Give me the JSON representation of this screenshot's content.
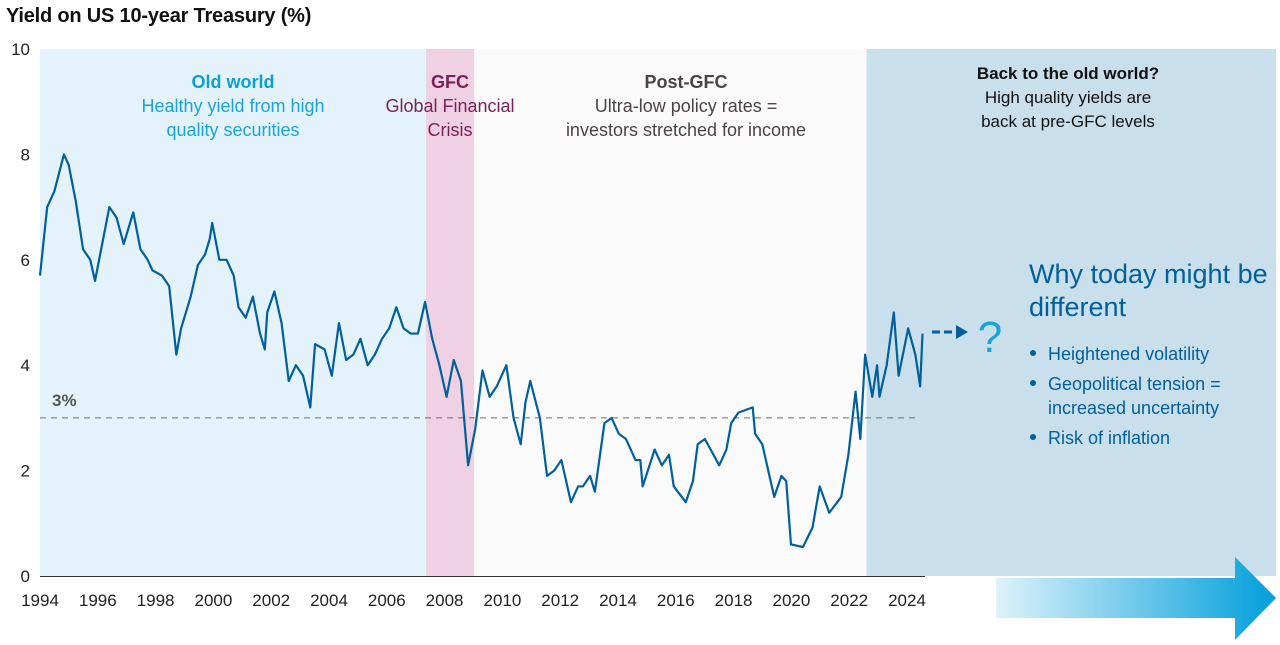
{
  "title": "Yield on US 10-year Treasury (%)",
  "regions": [
    {
      "name": "old-world",
      "start": 1994.0,
      "end": 2007.45,
      "color": "#e4f3fb",
      "heading": "Old world",
      "text": [
        "Healthy yield from high",
        "quality securities"
      ],
      "heading_color": "#0d9fd8",
      "text_color": "#1aa3db"
    },
    {
      "name": "gfc",
      "start": 2007.45,
      "end": 2009.13,
      "color": "#efd1e3",
      "heading": "GFC",
      "text": [
        "Global Financial",
        "Crisis"
      ],
      "heading_color": "#7b2158",
      "text_color": "#7b2158"
    },
    {
      "name": "post-gfc",
      "start": 2009.13,
      "end": 2022.8,
      "color": "#fafafa",
      "heading": "Post-GFC",
      "text": [
        "Ultra-low policy rates =",
        "investors stretched for income"
      ],
      "heading_color": "#4d4345",
      "text_color": "#4d4345"
    },
    {
      "name": "back-to-old-world",
      "start": 2022.8,
      "end": null,
      "color": "#cadfec",
      "heading": "Back to the old world?",
      "text": [
        "High quality yields are",
        "back at pre-GFC levels"
      ],
      "heading_color": "#111111",
      "text_color": "#111111"
    }
  ],
  "reference_line": {
    "value": 3,
    "label": "3%"
  },
  "outlook": {
    "question_mark": "?",
    "heading": "Why today might be different",
    "bullets": [
      "Heightened volatility",
      "Geopolitical tension = increased uncertainty",
      "Risk of inflation"
    ],
    "color": "#00609c"
  },
  "chart_data": {
    "type": "line",
    "title": "Yield on US 10-year Treasury (%)",
    "ylim": [
      0,
      10
    ],
    "yticks": [
      0,
      2,
      4,
      6,
      8,
      10
    ],
    "xticks": [
      1994,
      1996,
      1998,
      2000,
      2002,
      2004,
      2006,
      2008,
      2010,
      2012,
      2014,
      2016,
      2018,
      2020,
      2022,
      2024
    ],
    "grid": false,
    "line_color": "#00609c",
    "series": [
      {
        "values": [
          [
            "1994-01",
            5.7
          ],
          [
            "1994-04",
            7.0
          ],
          [
            "1994-07",
            7.3
          ],
          [
            "1994-11",
            8.0
          ],
          [
            "1995-01",
            7.8
          ],
          [
            "1995-04",
            7.1
          ],
          [
            "1995-07",
            6.2
          ],
          [
            "1995-10",
            6.0
          ],
          [
            "1995-12",
            5.6
          ],
          [
            "1996-03",
            6.3
          ],
          [
            "1996-06",
            7.0
          ],
          [
            "1996-09",
            6.8
          ],
          [
            "1996-12",
            6.3
          ],
          [
            "1997-04",
            6.9
          ],
          [
            "1997-07",
            6.2
          ],
          [
            "1997-10",
            6.0
          ],
          [
            "1997-12",
            5.8
          ],
          [
            "1998-04",
            5.7
          ],
          [
            "1998-07",
            5.5
          ],
          [
            "1998-10",
            4.2
          ],
          [
            "1998-12",
            4.7
          ],
          [
            "1999-04",
            5.3
          ],
          [
            "1999-07",
            5.9
          ],
          [
            "1999-10",
            6.1
          ],
          [
            "1999-12",
            6.4
          ],
          [
            "2000-01",
            6.7
          ],
          [
            "2000-04",
            6.0
          ],
          [
            "2000-07",
            6.0
          ],
          [
            "2000-10",
            5.7
          ],
          [
            "2000-12",
            5.1
          ],
          [
            "2001-03",
            4.9
          ],
          [
            "2001-06",
            5.3
          ],
          [
            "2001-09",
            4.6
          ],
          [
            "2001-11",
            4.3
          ],
          [
            "2001-12",
            5.0
          ],
          [
            "2002-03",
            5.4
          ],
          [
            "2002-06",
            4.8
          ],
          [
            "2002-09",
            3.7
          ],
          [
            "2002-12",
            4.0
          ],
          [
            "2003-03",
            3.8
          ],
          [
            "2003-06",
            3.2
          ],
          [
            "2003-08",
            4.4
          ],
          [
            "2003-12",
            4.3
          ],
          [
            "2004-03",
            3.8
          ],
          [
            "2004-06",
            4.8
          ],
          [
            "2004-09",
            4.1
          ],
          [
            "2004-12",
            4.2
          ],
          [
            "2005-03",
            4.5
          ],
          [
            "2005-06",
            4.0
          ],
          [
            "2005-09",
            4.2
          ],
          [
            "2005-12",
            4.5
          ],
          [
            "2006-03",
            4.7
          ],
          [
            "2006-06",
            5.1
          ],
          [
            "2006-09",
            4.7
          ],
          [
            "2006-12",
            4.6
          ],
          [
            "2007-03",
            4.6
          ],
          [
            "2007-06",
            5.2
          ],
          [
            "2007-09",
            4.5
          ],
          [
            "2007-12",
            4.0
          ],
          [
            "2008-03",
            3.4
          ],
          [
            "2008-06",
            4.1
          ],
          [
            "2008-09",
            3.7
          ],
          [
            "2008-12",
            2.1
          ],
          [
            "2009-03",
            2.8
          ],
          [
            "2009-06",
            3.9
          ],
          [
            "2009-09",
            3.4
          ],
          [
            "2009-12",
            3.6
          ],
          [
            "2010-04",
            4.0
          ],
          [
            "2010-07",
            3.0
          ],
          [
            "2010-10",
            2.5
          ],
          [
            "2010-12",
            3.3
          ],
          [
            "2011-02",
            3.7
          ],
          [
            "2011-06",
            3.0
          ],
          [
            "2011-09",
            1.9
          ],
          [
            "2011-12",
            2.0
          ],
          [
            "2012-03",
            2.2
          ],
          [
            "2012-07",
            1.4
          ],
          [
            "2012-10",
            1.7
          ],
          [
            "2012-12",
            1.7
          ],
          [
            "2013-03",
            1.9
          ],
          [
            "2013-05",
            1.6
          ],
          [
            "2013-09",
            2.9
          ],
          [
            "2013-12",
            3.0
          ],
          [
            "2014-03",
            2.7
          ],
          [
            "2014-06",
            2.6
          ],
          [
            "2014-10",
            2.2
          ],
          [
            "2014-12",
            2.2
          ],
          [
            "2015-01",
            1.7
          ],
          [
            "2015-06",
            2.4
          ],
          [
            "2015-09",
            2.1
          ],
          [
            "2015-12",
            2.3
          ],
          [
            "2016-02",
            1.7
          ],
          [
            "2016-07",
            1.4
          ],
          [
            "2016-10",
            1.8
          ],
          [
            "2016-12",
            2.5
          ],
          [
            "2017-03",
            2.6
          ],
          [
            "2017-09",
            2.1
          ],
          [
            "2017-12",
            2.4
          ],
          [
            "2018-02",
            2.9
          ],
          [
            "2018-05",
            3.1
          ],
          [
            "2018-11",
            3.2
          ],
          [
            "2018-12",
            2.7
          ],
          [
            "2019-03",
            2.5
          ],
          [
            "2019-08",
            1.5
          ],
          [
            "2019-11",
            1.9
          ],
          [
            "2020-01",
            1.8
          ],
          [
            "2020-03",
            0.6
          ],
          [
            "2020-08",
            0.55
          ],
          [
            "2020-12",
            0.92
          ],
          [
            "2021-03",
            1.7
          ],
          [
            "2021-07",
            1.2
          ],
          [
            "2021-12",
            1.5
          ],
          [
            "2022-03",
            2.3
          ],
          [
            "2022-06",
            3.5
          ],
          [
            "2022-08",
            2.6
          ],
          [
            "2022-10",
            4.2
          ],
          [
            "2023-01",
            3.4
          ],
          [
            "2023-03",
            4.0
          ],
          [
            "2023-04",
            3.4
          ],
          [
            "2023-07",
            4.0
          ],
          [
            "2023-10",
            5.0
          ],
          [
            "2023-12",
            3.8
          ],
          [
            "2024-04",
            4.7
          ],
          [
            "2024-07",
            4.2
          ],
          [
            "2024-09",
            3.6
          ],
          [
            "2024-10",
            4.6
          ]
        ]
      }
    ]
  }
}
